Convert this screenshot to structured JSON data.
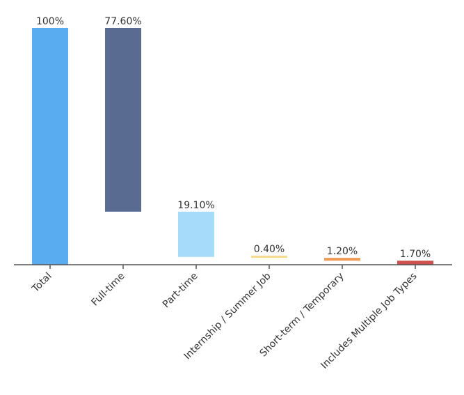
{
  "chart_data": {
    "type": "bar",
    "subtype": "waterfall",
    "title": "",
    "xlabel": "",
    "ylabel": "",
    "ylim": [
      0,
      100
    ],
    "grid": false,
    "legend": "none",
    "categories": [
      "Total",
      "Full-time",
      "Part-time",
      "Internship / Summer Job",
      "Short-term / Temporary",
      "Includes Multiple Job Types"
    ],
    "values": [
      100,
      77.6,
      19.1,
      0.4,
      1.2,
      1.7
    ],
    "value_labels": [
      "100%",
      "77.60%",
      "19.10%",
      "0.40%",
      "1.20%",
      "1.70%"
    ],
    "colors": [
      "#5aacf0",
      "#5a6b92",
      "#a6dcfa",
      "#f5d98a",
      "#ee9a55",
      "#d0504e"
    ]
  }
}
